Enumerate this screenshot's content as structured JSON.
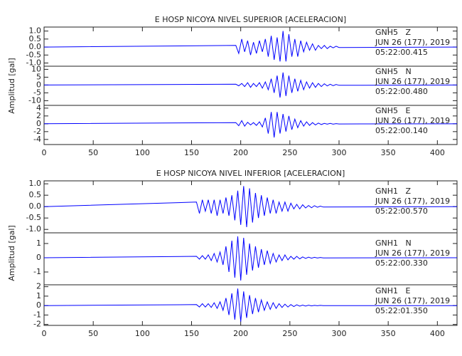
{
  "chart_data": [
    {
      "type": "line",
      "title": "E HOSP NICOYA NIVEL SUPERIOR [ACELERACION]",
      "ylabel": "Amplitud [gal]",
      "x": [
        0,
        195,
        198,
        201,
        204,
        207,
        210,
        213,
        216,
        219,
        222,
        225,
        228,
        231,
        234,
        237,
        240,
        243,
        246,
        249,
        252,
        255,
        258,
        261,
        264,
        267,
        270,
        273,
        276,
        279,
        282,
        285,
        288,
        291,
        294,
        297,
        300,
        420
      ],
      "xlim": [
        0,
        420
      ],
      "xticks": [
        0,
        50,
        100,
        150,
        200,
        250,
        300,
        350,
        400
      ],
      "subplots": [
        {
          "name": "GNH5   Z",
          "date": "JUN 26 (177), 2019",
          "time": "05:22:00.415",
          "color": "#0000ff",
          "ylim": [
            -1.2,
            1.25
          ],
          "yticks": [
            {
              "value": -1,
              "label": "-1.0"
            },
            -0.5,
            {
              "value": 0,
              "label": "0.0"
            },
            0.5,
            {
              "value": 1,
              "label": "1.0"
            }
          ],
          "values": [
            0,
            0.1,
            -0.4,
            0.5,
            -0.3,
            0.4,
            -0.5,
            0.3,
            -0.4,
            0.4,
            -0.3,
            0.5,
            -0.6,
            0.7,
            -0.8,
            0.6,
            -0.9,
            1.0,
            -0.9,
            0.8,
            -0.6,
            0.5,
            -0.6,
            0.4,
            -0.3,
            0.3,
            -0.2,
            0.2,
            -0.2,
            0.1,
            -0.1,
            0.1,
            -0.1,
            0.05,
            -0.05,
            0.05,
            -0.03,
            0
          ]
        },
        {
          "name": "GNH5   N",
          "date": "JUN 26 (177), 2019",
          "time": "05:22:00.480",
          "color": "#0000ff",
          "ylim": [
            -13,
            12
          ],
          "yticks": [
            -10,
            -5,
            0,
            5,
            10
          ],
          "values": [
            0,
            0.5,
            -0.5,
            1,
            -1,
            1.5,
            -1.5,
            1,
            -1,
            1.5,
            -2,
            2,
            -3,
            4,
            -5,
            6,
            -8,
            8,
            -7,
            6,
            -5,
            4,
            -4,
            3,
            -3,
            2,
            -2,
            1.5,
            -1.5,
            1,
            -1,
            0.8,
            -0.6,
            0.5,
            -0.4,
            0.3,
            -0.2,
            0
          ]
        },
        {
          "name": "GNH5   E",
          "date": "JUN 26 (177), 2019",
          "time": "05:22:00.140",
          "color": "#0000ff",
          "ylim": [
            -5.3,
            4.7
          ],
          "yticks": [
            -4,
            -2,
            0,
            2,
            4
          ],
          "values": [
            0,
            0.3,
            -0.5,
            0.8,
            -0.6,
            0.4,
            -0.3,
            0.3,
            -0.4,
            0.5,
            -0.8,
            1.5,
            -2.5,
            3,
            -3.5,
            3,
            -2.5,
            2.5,
            -2,
            2,
            -1.5,
            1.2,
            -1,
            0.8,
            -0.6,
            0.5,
            -0.4,
            0.3,
            -0.3,
            0.2,
            -0.2,
            0.1,
            -0.1,
            0.1,
            -0.1,
            0.05,
            -0.05,
            0
          ]
        }
      ]
    },
    {
      "type": "line",
      "title": "E HOSP NICOYA NIVEL INFERIOR [ACELERACION]",
      "ylabel": "Amplitud [gal]",
      "x": [
        0,
        155,
        158,
        161,
        164,
        167,
        170,
        173,
        176,
        179,
        182,
        185,
        188,
        191,
        194,
        197,
        200,
        203,
        206,
        209,
        212,
        215,
        218,
        221,
        224,
        227,
        230,
        233,
        236,
        239,
        242,
        245,
        248,
        251,
        254,
        257,
        260,
        263,
        266,
        269,
        272,
        275,
        278,
        281,
        284,
        420
      ],
      "xlim": [
        0,
        420
      ],
      "xticks": [
        0,
        50,
        100,
        150,
        200,
        250,
        300,
        350,
        400
      ],
      "subplots": [
        {
          "name": "GNH1   Z",
          "date": "JUN 26 (177), 2019",
          "time": "05:22:00.570",
          "color": "#0000ff",
          "ylim": [
            -1.15,
            1.13
          ],
          "yticks": [
            {
              "value": -1,
              "label": "-1.0"
            },
            -0.5,
            {
              "value": 0,
              "label": "0.0"
            },
            0.5,
            {
              "value": 1,
              "label": "1.0"
            }
          ],
          "values": [
            0,
            0.2,
            -0.3,
            0.3,
            -0.2,
            0.3,
            -0.3,
            0.3,
            -0.4,
            0.3,
            -0.3,
            0.4,
            -0.4,
            0.5,
            -0.6,
            0.7,
            -0.8,
            0.9,
            -0.9,
            0.8,
            -0.7,
            0.6,
            -0.5,
            0.5,
            -0.4,
            0.4,
            -0.3,
            0.3,
            -0.3,
            0.2,
            -0.2,
            0.2,
            -0.2,
            0.15,
            -0.1,
            0.1,
            -0.1,
            0.08,
            -0.06,
            0.05,
            -0.05,
            0.04,
            -0.03,
            0.02,
            -0.02,
            0
          ]
        },
        {
          "name": "GNH1   N",
          "date": "JUN 26 (177), 2019",
          "time": "05:22:00.330",
          "color": "#0000ff",
          "ylim": [
            -1.9,
            1.75
          ],
          "yticks": [
            -1,
            0,
            1
          ],
          "values": [
            0,
            0.1,
            -0.1,
            0.15,
            -0.1,
            0.2,
            -0.2,
            0.3,
            -0.3,
            0.4,
            -0.5,
            0.8,
            -1,
            1.2,
            -1.4,
            1.5,
            -1.6,
            1.4,
            -1.2,
            1,
            -0.9,
            0.8,
            -0.7,
            0.6,
            -0.5,
            0.5,
            -0.4,
            0.3,
            -0.3,
            0.2,
            -0.2,
            0.2,
            -0.15,
            0.1,
            -0.1,
            0.1,
            -0.08,
            0.06,
            -0.05,
            0.04,
            -0.03,
            0.03,
            -0.02,
            0.02,
            -0.01,
            0
          ]
        },
        {
          "name": "GNH1   E",
          "date": "JUN 26 (177), 2019",
          "time": "05:22:01.350",
          "color": "#0000ff",
          "ylim": [
            -2.1,
            2.2
          ],
          "yticks": [
            -2,
            -1,
            0,
            1,
            2
          ],
          "values": [
            0,
            0.1,
            -0.15,
            0.2,
            -0.15,
            0.2,
            -0.2,
            0.3,
            -0.3,
            0.4,
            -0.5,
            0.8,
            -1,
            1.3,
            -1.5,
            1.8,
            -1.7,
            1.5,
            -1.3,
            1.1,
            -0.9,
            0.8,
            -0.7,
            0.6,
            -0.5,
            0.4,
            -0.4,
            0.3,
            -0.3,
            0.2,
            -0.2,
            0.15,
            -0.15,
            0.1,
            -0.1,
            0.08,
            -0.06,
            0.05,
            -0.05,
            0.04,
            -0.03,
            0.02,
            -0.02,
            0.02,
            -0.01,
            0
          ]
        }
      ]
    }
  ]
}
